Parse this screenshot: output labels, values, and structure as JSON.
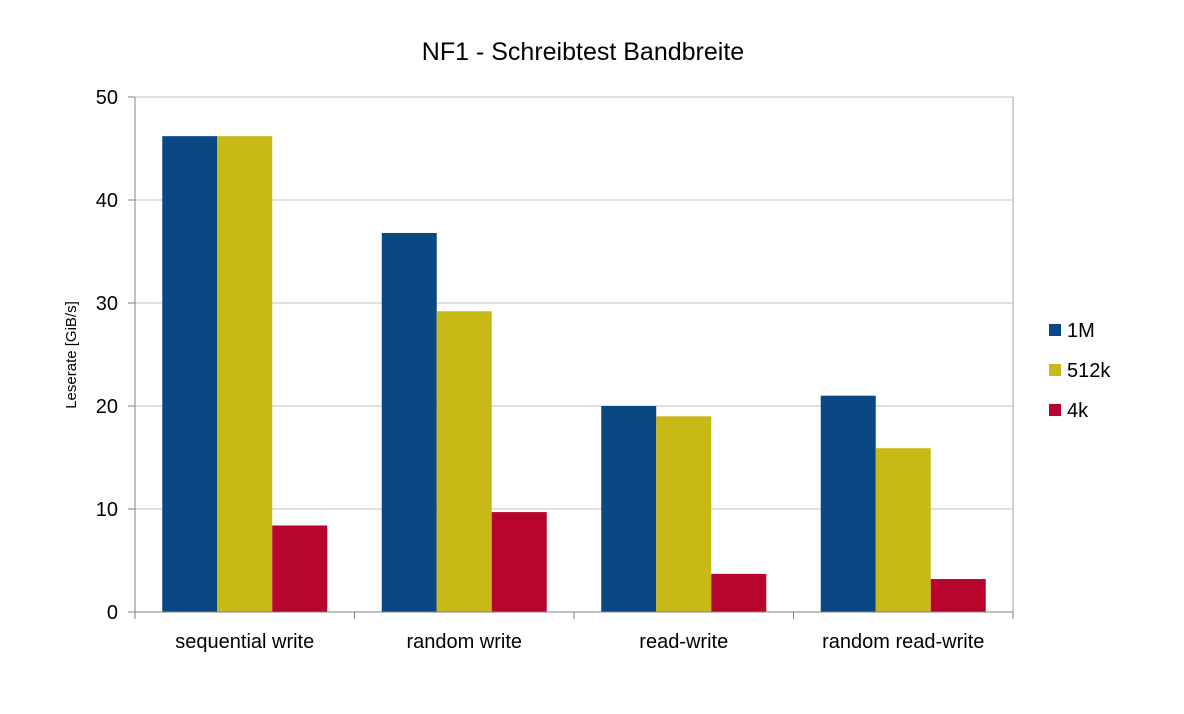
{
  "chart_data": {
    "type": "bar",
    "title": "NF1 - Schreibtest Bandbreite",
    "ylabel": "Leserate [GiB/s]",
    "xlabel": "",
    "categories": [
      "sequential write",
      "random write",
      "read-write",
      "random read-write"
    ],
    "series": [
      {
        "name": "1M",
        "color": "#0a4884",
        "values": [
          46.2,
          36.8,
          20.0,
          21.0
        ]
      },
      {
        "name": "512k",
        "color": "#c8b916",
        "values": [
          46.2,
          29.2,
          19.0,
          15.9
        ]
      },
      {
        "name": "4k",
        "color": "#b8052e",
        "values": [
          8.4,
          9.7,
          3.7,
          3.2
        ]
      }
    ],
    "ylim": [
      0,
      50
    ],
    "yticks": [
      "0",
      "10",
      "20",
      "30",
      "40",
      "50"
    ],
    "grid": true,
    "legend_position": "right"
  }
}
